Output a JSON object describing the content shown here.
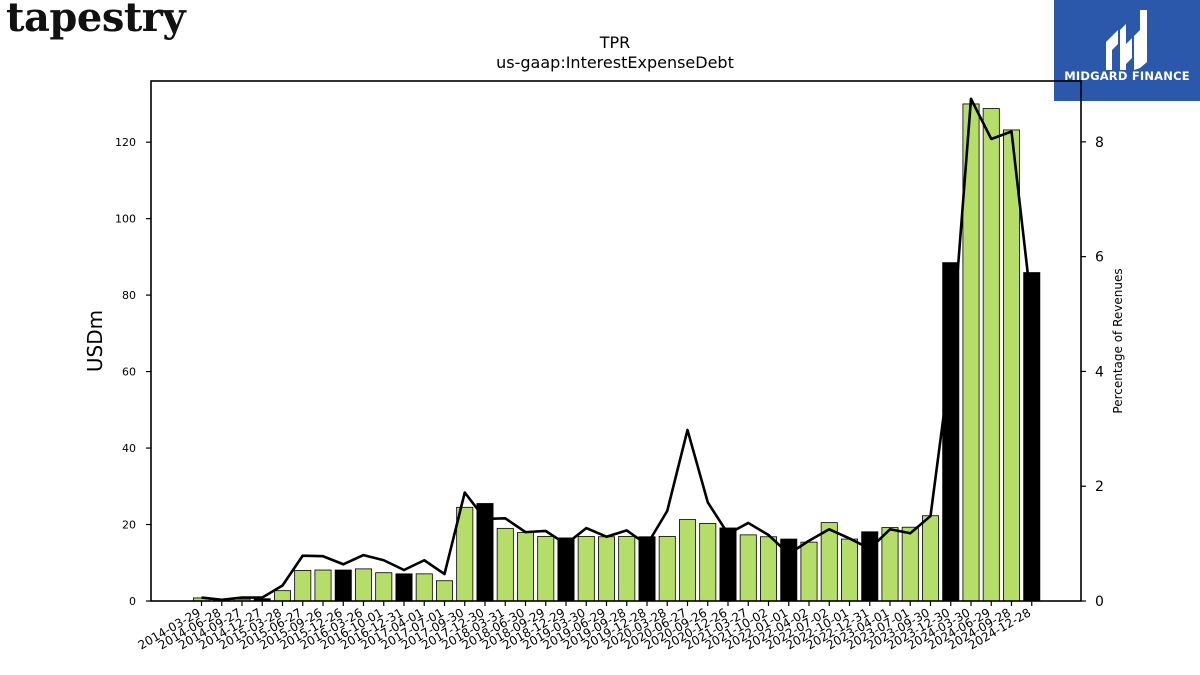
{
  "brand": {
    "wordmark": "tapestry",
    "badge_text": "MIDGARD FINANCE",
    "badge_color": "#2b58ab"
  },
  "colors": {
    "bar_fill": "#b5dd6a",
    "bar_highlight": "#000000",
    "line": "#000000"
  },
  "chart_data": {
    "type": "bar",
    "title": "TPR",
    "subtitle": "us-gaap:InterestExpenseDebt",
    "ylabel": "USDm",
    "y2label": "Percentage of Revenues",
    "ylim": [
      0,
      136
    ],
    "y2lim": [
      0,
      9.06
    ],
    "yticks": [
      0,
      20,
      40,
      60,
      80,
      100,
      120
    ],
    "y2ticks": [
      0,
      2,
      4,
      6,
      8
    ],
    "categories": [
      "2014-03-29",
      "2014-06-28",
      "2014-09-27",
      "2014-12-27",
      "2015-03-28",
      "2015-06-27",
      "2015-09-26",
      "2015-12-26",
      "2016-03-26",
      "2016-10-01",
      "2016-12-31",
      "2017-04-01",
      "2017-07-01",
      "2017-09-30",
      "2017-12-30",
      "2018-03-31",
      "2018-06-30",
      "2018-09-29",
      "2018-12-29",
      "2019-03-30",
      "2019-06-29",
      "2019-09-28",
      "2019-12-28",
      "2020-03-28",
      "2020-06-27",
      "2020-09-26",
      "2020-12-26",
      "2021-03-27",
      "2021-10-02",
      "2022-01-01",
      "2022-04-02",
      "2022-07-02",
      "2022-10-01",
      "2022-12-31",
      "2023-04-01",
      "2023-07-01",
      "2023-09-30",
      "2023-12-30",
      "2024-03-30",
      "2024-06-29",
      "2024-09-28",
      "2024-12-28"
    ],
    "series": [
      {
        "kind": "bar",
        "axis": "left",
        "values": [
          0.8,
          0.3,
          0.5,
          0.6,
          2.7,
          8.0,
          8.1,
          8.1,
          8.4,
          7.4,
          7.1,
          7.1,
          5.3,
          24.5,
          25.5,
          19.0,
          17.9,
          16.9,
          16.5,
          16.9,
          16.8,
          16.9,
          16.8,
          16.9,
          21.3,
          20.3,
          19.1,
          17.3,
          16.8,
          16.2,
          15.4,
          20.5,
          16.2,
          18.1,
          19.2,
          19.3,
          22.3,
          88.5,
          130.0,
          128.8,
          123.2,
          85.9
        ],
        "highlight": [
          false,
          false,
          false,
          true,
          false,
          false,
          false,
          true,
          false,
          false,
          true,
          false,
          false,
          false,
          true,
          false,
          false,
          false,
          true,
          false,
          false,
          false,
          true,
          false,
          false,
          false,
          true,
          false,
          false,
          true,
          false,
          false,
          false,
          true,
          false,
          false,
          false,
          true,
          false,
          false,
          false,
          true
        ]
      },
      {
        "kind": "line",
        "axis": "right",
        "values": [
          0.06,
          0.02,
          0.06,
          0.06,
          0.27,
          0.79,
          0.78,
          0.64,
          0.8,
          0.71,
          0.54,
          0.71,
          0.47,
          1.89,
          1.43,
          1.44,
          1.2,
          1.22,
          0.99,
          1.27,
          1.12,
          1.23,
          0.98,
          1.57,
          2.98,
          1.72,
          1.17,
          1.36,
          1.15,
          0.82,
          1.05,
          1.25,
          1.09,
          0.91,
          1.25,
          1.18,
          1.48,
          4.18,
          8.75,
          8.05,
          8.18,
          5.1
        ]
      }
    ]
  }
}
